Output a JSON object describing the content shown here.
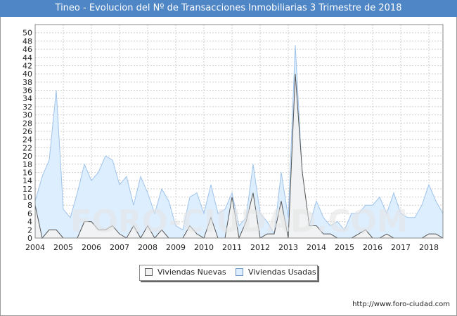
{
  "title": "Tineo - Evolucion del Nº de Transacciones Inmobiliarias 3 Trimestre de 2018",
  "footer": "http://www.foro-ciudad.com",
  "watermark": "FORO-CIUDAD.COM",
  "colors": {
    "title_bg": "#4f86c6",
    "nuevas_fill": "#f2f2f2",
    "nuevas_line": "#555555",
    "usadas_fill": "#ddeeff",
    "usadas_line": "#9fc3ea",
    "grid": "#d0d0d0"
  },
  "chart_data": {
    "type": "area",
    "title": "Tineo - Evolucion del Nº de Transacciones Inmobiliarias 3 Trimestre de 2018",
    "x_start": 2004.0,
    "x_step": 0.25,
    "xlim": [
      2004,
      2018.5
    ],
    "ylim": [
      0,
      52
    ],
    "x_ticks": [
      2004,
      2005,
      2006,
      2007,
      2008,
      2009,
      2010,
      2011,
      2012,
      2013,
      2014,
      2015,
      2016,
      2017,
      2018
    ],
    "y_ticks": [
      0,
      2,
      4,
      6,
      8,
      10,
      12,
      14,
      16,
      18,
      20,
      22,
      24,
      26,
      28,
      30,
      32,
      34,
      36,
      38,
      40,
      42,
      44,
      46,
      48,
      50
    ],
    "grid": true,
    "legend_position": "bottom",
    "series": [
      {
        "name": "Viviendas Nuevas",
        "values": [
          8,
          0,
          2,
          2,
          0,
          0,
          0,
          4,
          4,
          2,
          2,
          3,
          1,
          0,
          3,
          0,
          3,
          0,
          2,
          0,
          0,
          0,
          3,
          1,
          0,
          5,
          0,
          0,
          10,
          0,
          4,
          11,
          0,
          1,
          1,
          9,
          0,
          40,
          16,
          3,
          3,
          1,
          1,
          0,
          0,
          0,
          1,
          2,
          0,
          0,
          1,
          0,
          0,
          0,
          0,
          0,
          1,
          1,
          0
        ]
      },
      {
        "name": "Viviendas Usadas",
        "values": [
          9,
          15,
          19,
          36,
          7,
          5,
          11,
          18,
          14,
          16,
          20,
          19,
          13,
          15,
          8,
          15,
          11,
          6,
          12,
          9,
          3,
          2,
          10,
          11,
          6,
          13,
          6,
          7,
          11,
          3,
          5,
          18,
          6,
          4,
          1,
          16,
          5,
          47,
          15,
          3,
          9,
          5,
          3,
          4,
          2,
          6,
          6,
          8,
          8,
          10,
          6,
          11,
          6,
          5,
          5,
          8,
          13,
          9,
          6
        ]
      }
    ]
  }
}
